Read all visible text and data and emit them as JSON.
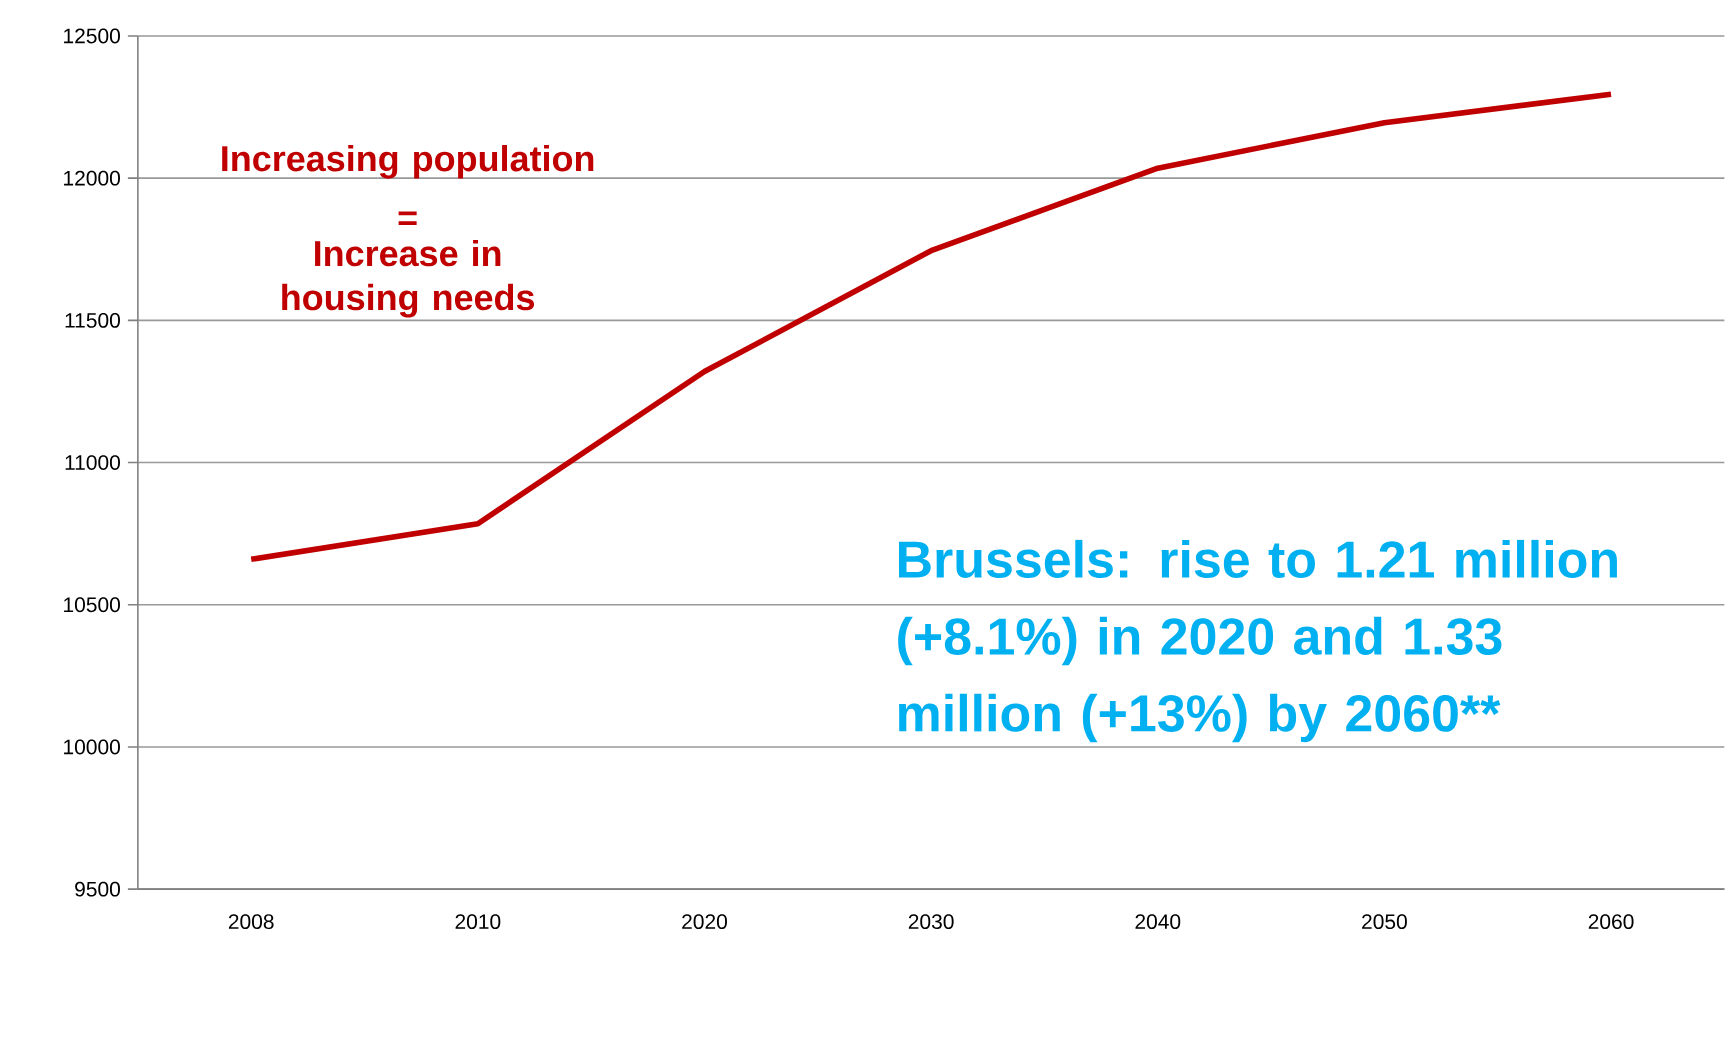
{
  "chart_data": {
    "type": "line",
    "categories": [
      "2008",
      "2010",
      "2020",
      "2030",
      "2040",
      "2050",
      "2060"
    ],
    "series": [
      {
        "color": "#c00000",
        "values": [
          10660,
          10785,
          11320,
          11745,
          12035,
          12195,
          12295
        ]
      }
    ],
    "ylim": [
      9500,
      12500
    ],
    "yticks": [
      9500,
      10000,
      10500,
      11000,
      11500,
      12000,
      12500
    ],
    "grid": "y",
    "annotations": [
      "Increasing population",
      "=",
      "Increase in housing needs",
      "Brussels: rise to 1.21 million (+8.1%) in 2020 and 1.33 million (+13%) by 2060**"
    ]
  }
}
